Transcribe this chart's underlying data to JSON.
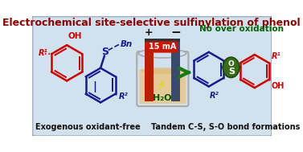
{
  "title": "Electrochemical site-selective sulfinylation of phenol",
  "title_color": "#8B0000",
  "bg_color": "#c5d8e8",
  "bg_gradient_top": "#dce8f4",
  "bg_gradient_bot": "#b8ccdd",
  "left_label": "Exogenous oxidant-free",
  "right_label": "Tandem C-S, S-O bond formations",
  "no_over_ox": "No over oxidation",
  "no_over_ox_color": "#006400",
  "current_label": "15 mA",
  "water_label": "H₂O",
  "phenol_color": "#cc0000",
  "sulfide_color": "#1a1a8c",
  "product_blue_color": "#1a1a8c",
  "product_red_color": "#cc0000",
  "S_bg_color": "#3a6b18",
  "electrode_red": "#b82000",
  "electrode_blue": "#3a4a6a",
  "electrode_gray": "#8090a0",
  "beaker_fill": "#e8c890",
  "beaker_edge": "#aaaaaa",
  "arrow_color": "#1a7a1a",
  "figsize": [
    3.77,
    1.89
  ],
  "dpi": 100
}
